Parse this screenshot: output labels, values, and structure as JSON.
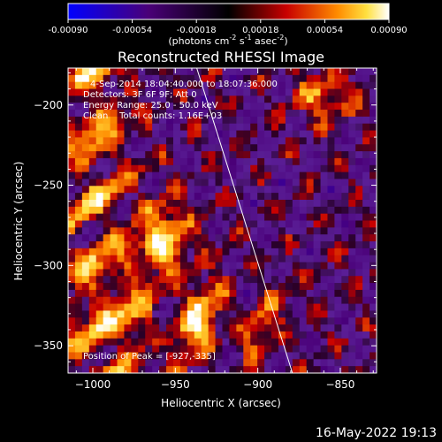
{
  "chart_data": {
    "type": "heatmap",
    "title": "Reconstructed RHESSI Image",
    "xlabel": "Heliocentric X (arcsec)",
    "ylabel": "Heliocentric Y (arcsec)",
    "x_ticks": [
      -1000,
      -950,
      -900,
      -850
    ],
    "y_ticks": [
      -200,
      -250,
      -300,
      -350
    ],
    "xlim": [
      -1015,
      -828
    ],
    "ylim": [
      -367,
      -177
    ],
    "colorbar": {
      "ticks": [
        "-0.00090",
        "-0.00054",
        "-0.00018",
        "0.00018",
        "0.00054",
        "0.00090"
      ],
      "range": [
        -0.0009,
        0.0009
      ],
      "unit_prefix": "(photons cm",
      "unit_exp1": "-2",
      "unit_mid": " s",
      "unit_exp2": "-1",
      "unit_mid2": " asec",
      "unit_exp3": "-2",
      "unit_suffix": ")"
    },
    "info_lines": [
      "4-Sep-2014 18:04:40.000 to 18:07:36.000",
      "Detectors: 3F 6F 9F; Att 0",
      "Energy Range: 25.0 - 50.0 keV",
      "Clean    Total counts: 1.16E+03"
    ],
    "peak_label": "Position of Peak = [-927,-335]",
    "limb_line": {
      "x": [
        -937,
        -879
      ],
      "y": [
        -177,
        -367
      ]
    }
  },
  "timestamp": "16-May-2022 19:13"
}
